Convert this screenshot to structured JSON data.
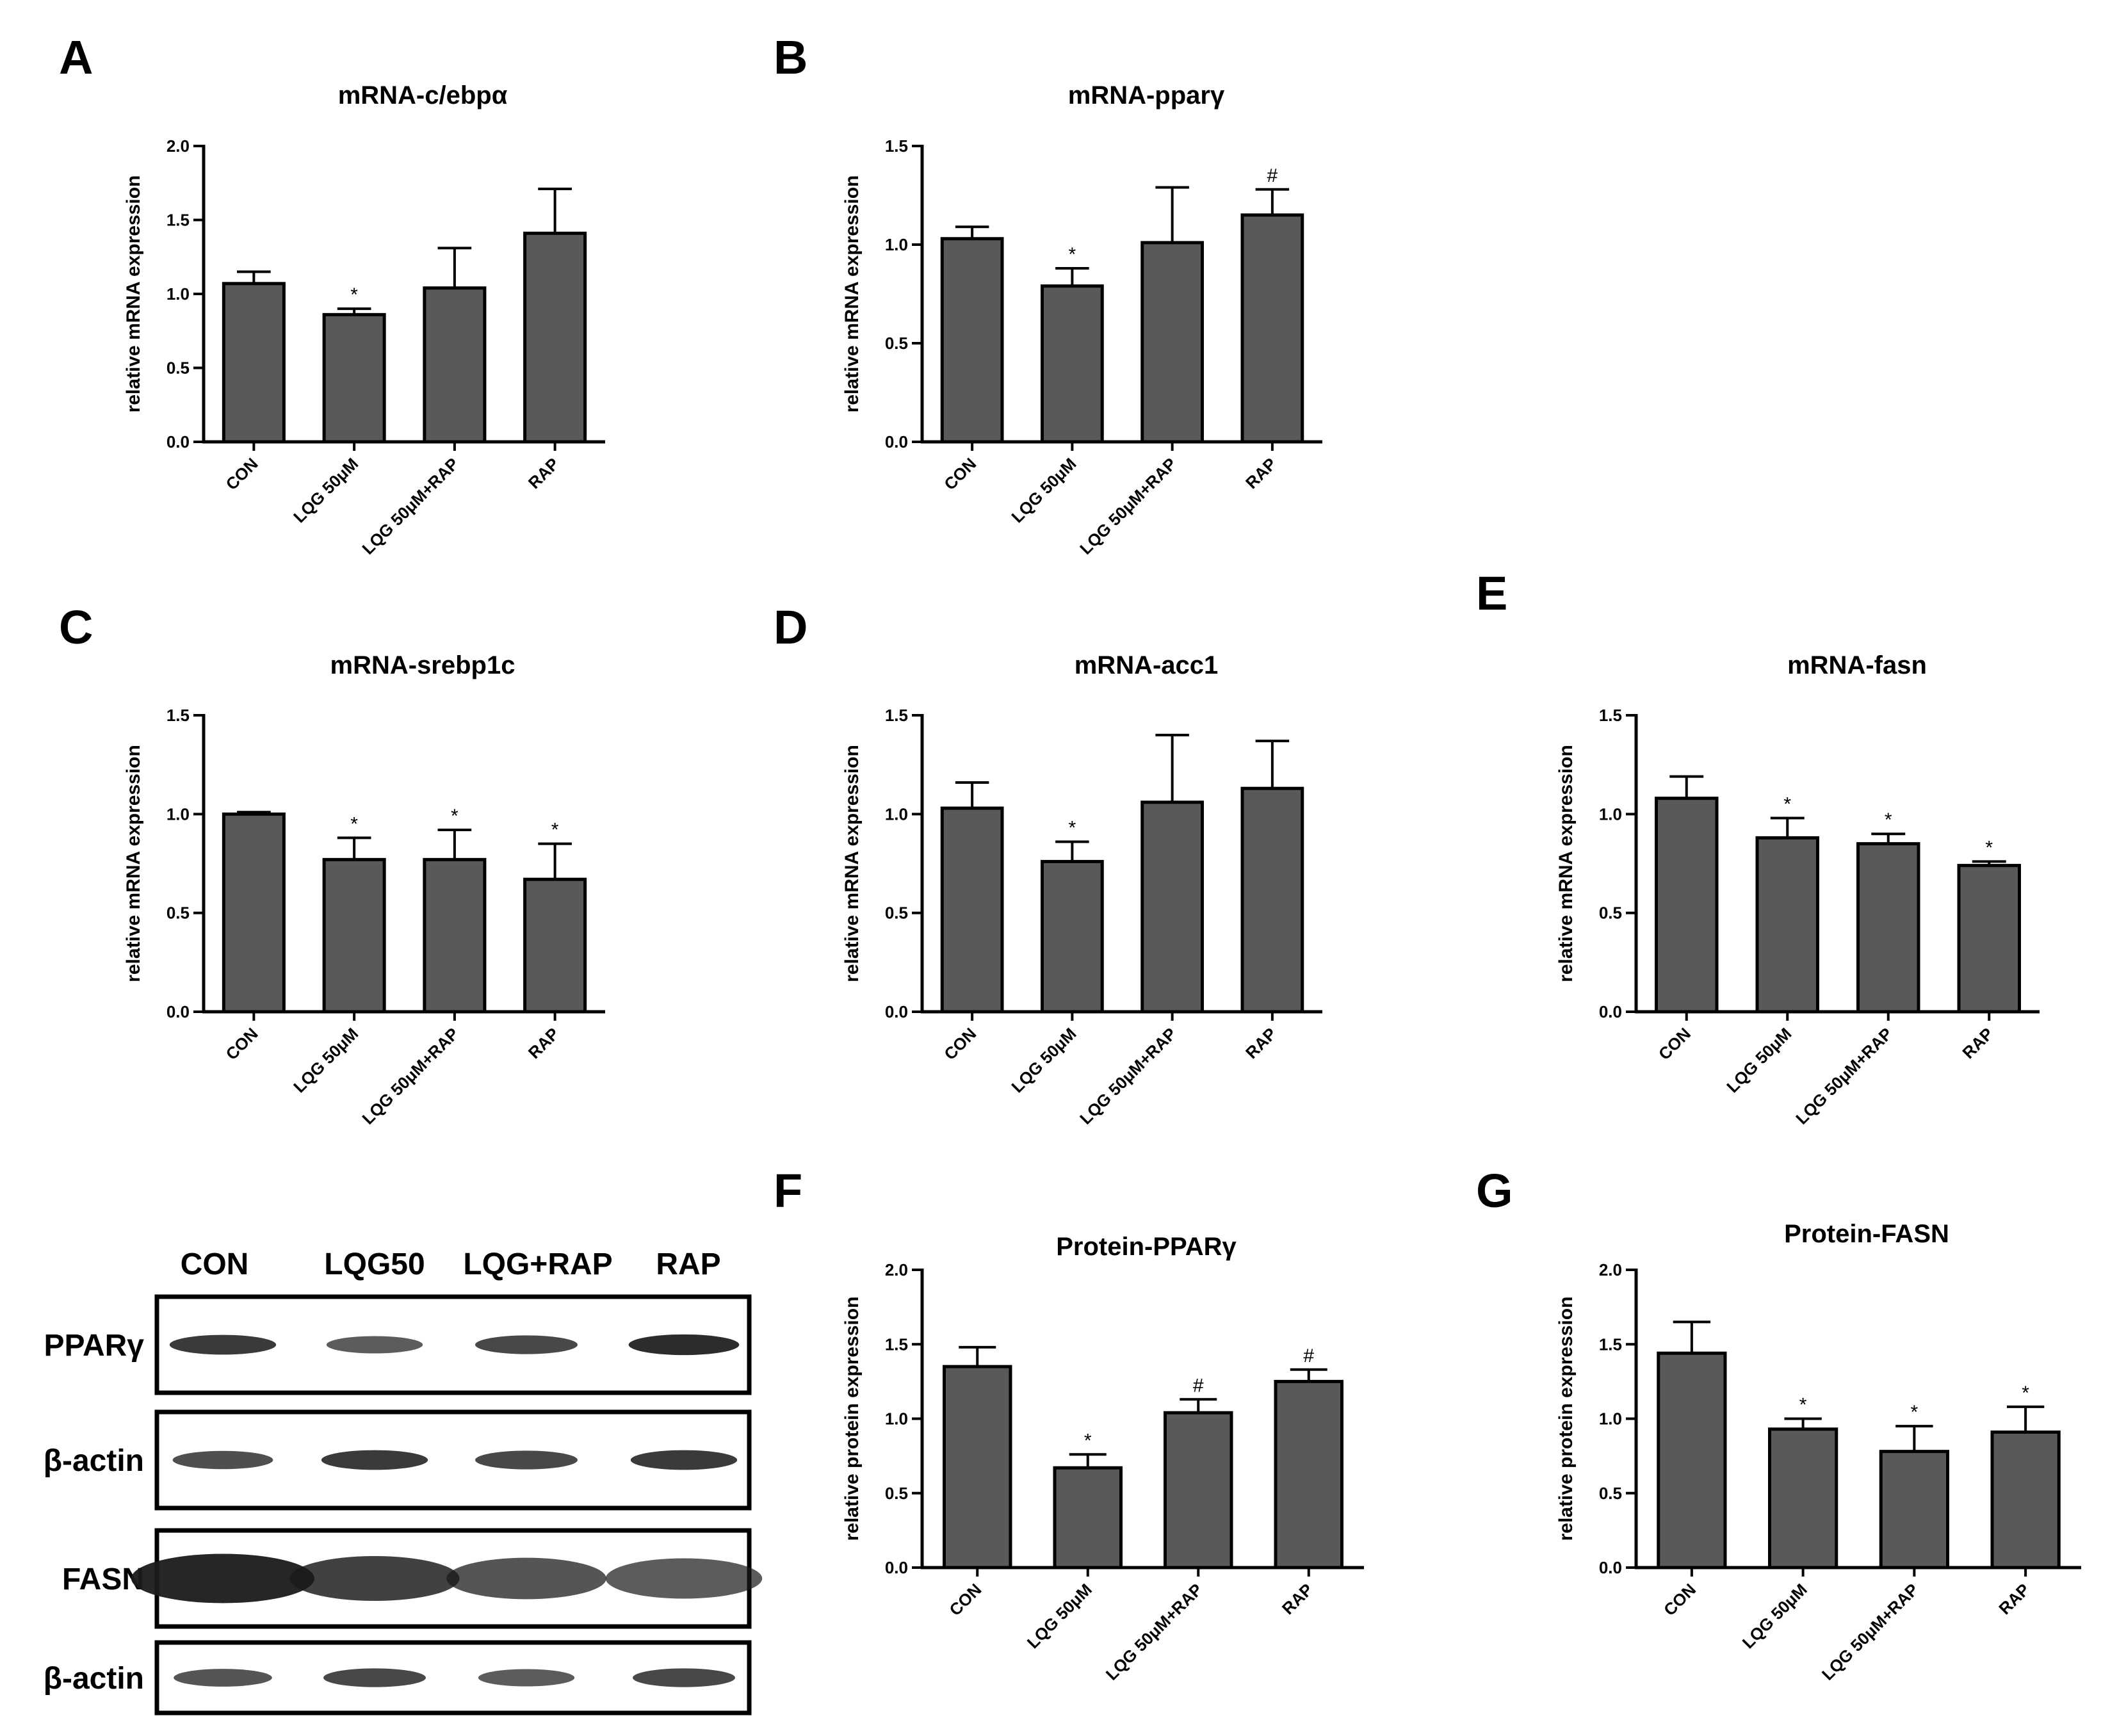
{
  "chart_data": [
    {
      "panel": "A",
      "type": "bar",
      "title": "mRNA-c/ebpα",
      "ylabel": "relative mRNA expression",
      "categories": [
        "CON",
        "LQG 50μM",
        "LQG 50μM+RAP",
        "RAP"
      ],
      "values": [
        1.07,
        0.86,
        1.04,
        1.41
      ],
      "errors": [
        0.08,
        0.04,
        0.27,
        0.3
      ],
      "significance": [
        "",
        "*",
        "",
        ""
      ],
      "ylim": [
        0,
        2.0
      ],
      "yticks": [
        "0.0",
        "0.5",
        "1.0",
        "1.5",
        "2.0"
      ]
    },
    {
      "panel": "B",
      "type": "bar",
      "title": "mRNA-pparγ",
      "ylabel": "relative mRNA expression",
      "categories": [
        "CON",
        "LQG 50μM",
        "LQG 50μM+RAP",
        "RAP"
      ],
      "values": [
        1.03,
        0.79,
        1.01,
        1.15
      ],
      "errors": [
        0.06,
        0.09,
        0.28,
        0.13
      ],
      "significance": [
        "",
        "*",
        "",
        "#"
      ],
      "ylim": [
        0,
        1.5
      ],
      "yticks": [
        "0.0",
        "0.5",
        "1.0",
        "1.5"
      ]
    },
    {
      "panel": "C",
      "type": "bar",
      "title": "mRNA-srebp1c",
      "ylabel": "relative mRNA expression",
      "categories": [
        "CON",
        "LQG 50μM",
        "LQG 50μM+RAP",
        "RAP"
      ],
      "values": [
        1.0,
        0.77,
        0.77,
        0.67
      ],
      "errors": [
        0.01,
        0.11,
        0.15,
        0.18
      ],
      "significance": [
        "",
        "*",
        "*",
        "*"
      ],
      "ylim": [
        0,
        1.5
      ],
      "yticks": [
        "0.0",
        "0.5",
        "1.0",
        "1.5"
      ]
    },
    {
      "panel": "D",
      "type": "bar",
      "title": "mRNA-acc1",
      "ylabel": "relative mRNA expression",
      "categories": [
        "CON",
        "LQG 50μM",
        "LQG 50μM+RAP",
        "RAP"
      ],
      "values": [
        1.03,
        0.76,
        1.06,
        1.13
      ],
      "errors": [
        0.13,
        0.1,
        0.34,
        0.24
      ],
      "significance": [
        "",
        "*",
        "",
        ""
      ],
      "ylim": [
        0,
        1.5
      ],
      "yticks": [
        "0.0",
        "0.5",
        "1.0",
        "1.5"
      ]
    },
    {
      "panel": "E",
      "type": "bar",
      "title": "mRNA-fasn",
      "ylabel": "relative mRNA expression",
      "categories": [
        "CON",
        "LQG 50μM",
        "LQG 50μM+RAP",
        "RAP"
      ],
      "values": [
        1.08,
        0.88,
        0.85,
        0.74
      ],
      "errors": [
        0.11,
        0.1,
        0.05,
        0.02
      ],
      "significance": [
        "",
        "*",
        "*",
        "*"
      ],
      "ylim": [
        0,
        1.5
      ],
      "yticks": [
        "0.0",
        "0.5",
        "1.0",
        "1.5"
      ]
    },
    {
      "panel": "F",
      "type": "bar",
      "title": "Protein-PPARγ",
      "ylabel": "relative protein expression",
      "categories": [
        "CON",
        "LQG 50μM",
        "LQG 50μM+RAP",
        "RAP"
      ],
      "values": [
        1.35,
        0.67,
        1.04,
        1.25
      ],
      "errors": [
        0.13,
        0.09,
        0.09,
        0.08
      ],
      "significance": [
        "",
        "*",
        "#",
        "#"
      ],
      "ylim": [
        0,
        2.0
      ],
      "yticks": [
        "0.0",
        "0.5",
        "1.0",
        "1.5",
        "2.0"
      ]
    },
    {
      "panel": "G",
      "type": "bar",
      "title": "Protein-FASN",
      "ylabel": "relative protein expression",
      "categories": [
        "CON",
        "LQG 50μM",
        "LQG 50μM+RAP",
        "RAP"
      ],
      "values": [
        1.44,
        0.93,
        0.78,
        0.91
      ],
      "errors": [
        0.21,
        0.07,
        0.17,
        0.17
      ],
      "significance": [
        "",
        "*",
        "*",
        "*"
      ],
      "ylim": [
        0,
        2.0
      ],
      "yticks": [
        "0.0",
        "0.5",
        "1.0",
        "1.5",
        "2.0"
      ]
    }
  ],
  "blot": {
    "columns": [
      "CON",
      "LQG50",
      "LQG+RAP",
      "RAP"
    ],
    "rows": [
      {
        "label": "PPARγ",
        "intensity": [
          0.85,
          0.6,
          0.75,
          0.95
        ]
      },
      {
        "label": "β-actin",
        "intensity": [
          0.7,
          0.85,
          0.75,
          0.85
        ]
      },
      {
        "label": "FASN",
        "intensity": [
          1.0,
          0.8,
          0.65,
          0.6
        ]
      },
      {
        "label": "β-actin",
        "intensity": [
          0.65,
          0.75,
          0.6,
          0.75
        ]
      }
    ]
  },
  "colors": {
    "bar_fill": "#595959",
    "bar_stroke": "#000000",
    "band": "#1a1a1a"
  }
}
